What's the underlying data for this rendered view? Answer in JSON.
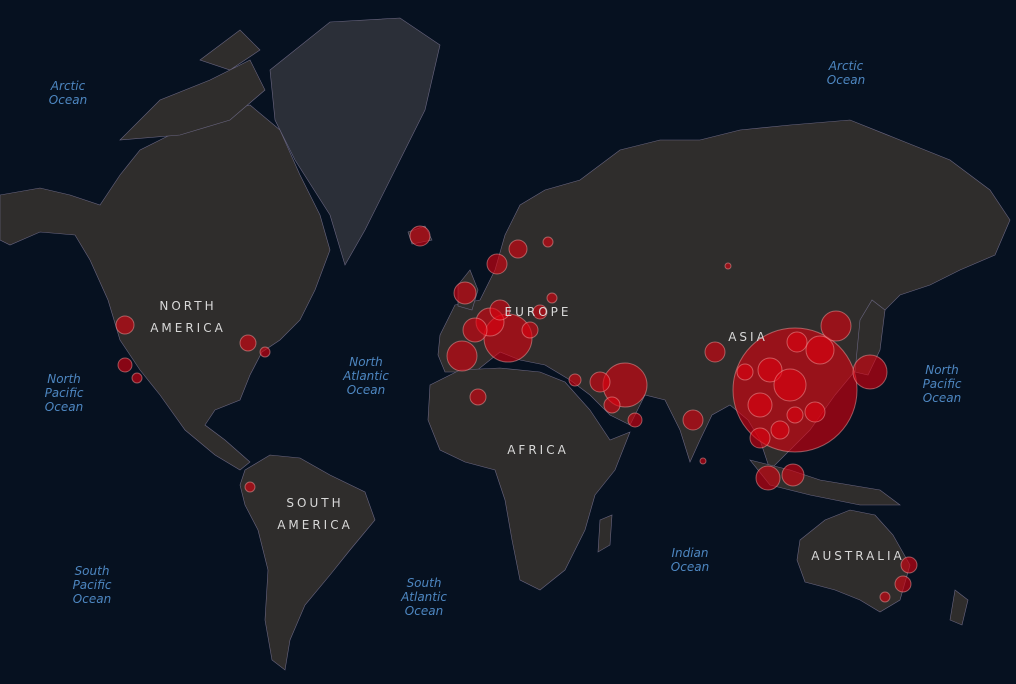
{
  "colors": {
    "ocean": "#061120",
    "land": "#2f2d2c",
    "greenland": "#2b2f38",
    "borders": "#6a6680",
    "bubble_fill": "#e0000f",
    "bubble_stroke": "#f3a0a0",
    "ocean_label": "#4d86c0",
    "continent_label": "#d8d8d8"
  },
  "oceans": [
    {
      "line1": "Arctic",
      "line2": "Ocean"
    },
    {
      "line1": "Arctic",
      "line2": "Ocean"
    },
    {
      "line1": "North",
      "line2": "Pacific",
      "line3": "Ocean"
    },
    {
      "line1": "North",
      "line2": "Atlantic",
      "line3": "Ocean"
    },
    {
      "line1": "North",
      "line2": "Pacific",
      "line3": "Ocean"
    },
    {
      "line1": "South",
      "line2": "Pacific",
      "line3": "Ocean"
    },
    {
      "line1": "South",
      "line2": "Atlantic",
      "line3": "Ocean"
    },
    {
      "line1": "Indian",
      "line2": "Ocean"
    }
  ],
  "continents": [
    {
      "line1": "NORTH",
      "line2": "AMERICA"
    },
    {
      "line1": "SOUTH",
      "line2": "AMERICA"
    },
    {
      "line1": "EUROPE"
    },
    {
      "line1": "AFRICA"
    },
    {
      "line1": "ASIA"
    },
    {
      "line1": "AUSTRALIA"
    }
  ],
  "legend_marker": "red circles sized by count"
}
